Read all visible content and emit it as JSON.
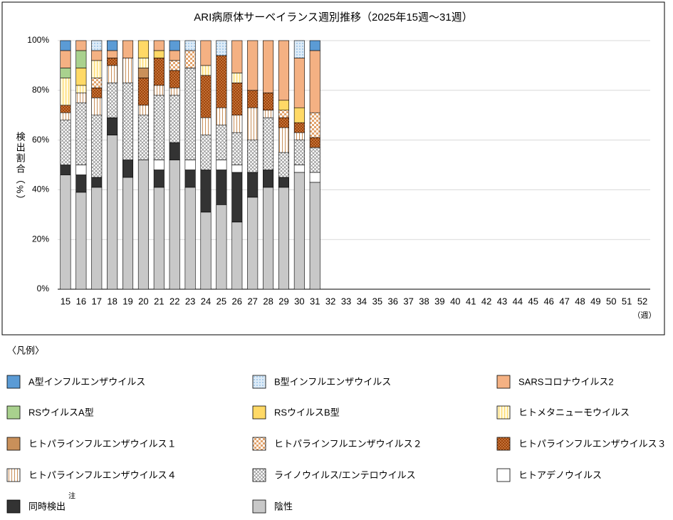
{
  "chart_data": {
    "type": "bar",
    "stacked": true,
    "title": "ARI病原体サーベイランス週別推移（2025年15週～31週）",
    "y_label": "検出割合（%）",
    "x_label": "（週）",
    "legend_title": "〈凡例〉",
    "annotations": [
      "注"
    ],
    "grid": true,
    "ylim": [
      0,
      100
    ],
    "yticks": [
      {
        "value": 0,
        "label": "0%"
      },
      {
        "value": 20,
        "label": "20%"
      },
      {
        "value": 40,
        "label": "40%"
      },
      {
        "value": 60,
        "label": "60%"
      },
      {
        "value": 80,
        "label": "80%"
      },
      {
        "value": 100,
        "label": "100%"
      }
    ],
    "categories": [
      "15",
      "16",
      "17",
      "18",
      "19",
      "20",
      "21",
      "22",
      "23",
      "24",
      "25",
      "26",
      "27",
      "28",
      "29",
      "30",
      "31",
      "32",
      "33",
      "34",
      "35",
      "36",
      "37",
      "38",
      "39",
      "40",
      "41",
      "42",
      "43",
      "44",
      "45",
      "46",
      "47",
      "48",
      "49",
      "50",
      "51",
      "52"
    ],
    "series": [
      {
        "name": "A型インフルエンザウイルス",
        "color": "#5b9bd5",
        "values": [
          4,
          0,
          0,
          4,
          0,
          0,
          0,
          4,
          0,
          0,
          0,
          0,
          0,
          0,
          0,
          0,
          4,
          null,
          null,
          null,
          null,
          null,
          null,
          null,
          null,
          null,
          null,
          null,
          null,
          null,
          null,
          null,
          null,
          null,
          null,
          null,
          null,
          null
        ]
      },
      {
        "name": "B型インフルエンザウイルス",
        "color": "#ddebf7",
        "values": [
          0,
          0,
          4,
          0,
          0,
          0,
          0,
          0,
          4,
          0,
          6,
          0,
          0,
          0,
          0,
          7,
          0,
          null,
          null,
          null,
          null,
          null,
          null,
          null,
          null,
          null,
          null,
          null,
          null,
          null,
          null,
          null,
          null,
          null,
          null,
          null,
          null,
          null
        ]
      },
      {
        "name": "SARSコロナウイルス2",
        "color": "#f4b183",
        "values": [
          7,
          4,
          4,
          3,
          7,
          0,
          4,
          4,
          0,
          10,
          0,
          13,
          20,
          21,
          24,
          20,
          25,
          null,
          null,
          null,
          null,
          null,
          null,
          null,
          null,
          null,
          null,
          null,
          null,
          null,
          null,
          null,
          null,
          null,
          null,
          null,
          null,
          null
        ]
      },
      {
        "name": "RSウイルスA型",
        "color": "#a9d18e",
        "values": [
          4,
          7,
          0,
          0,
          0,
          0,
          0,
          0,
          0,
          0,
          0,
          0,
          0,
          0,
          0,
          0,
          0,
          null,
          null,
          null,
          null,
          null,
          null,
          null,
          null,
          null,
          null,
          null,
          null,
          null,
          null,
          null,
          null,
          null,
          null,
          null,
          null,
          null
        ]
      },
      {
        "name": "RSウイルスB型",
        "color": "#ffd966",
        "values": [
          0,
          7,
          0,
          0,
          0,
          7,
          3,
          0,
          0,
          0,
          0,
          0,
          0,
          0,
          4,
          6,
          0,
          null,
          null,
          null,
          null,
          null,
          null,
          null,
          null,
          null,
          null,
          null,
          null,
          null,
          null,
          null,
          null,
          null,
          null,
          null,
          null,
          null
        ]
      },
      {
        "name": "ヒトメタニューモウイルス",
        "color": "#fff2cc",
        "values": [
          11,
          3,
          7,
          0,
          0,
          4,
          0,
          0,
          0,
          4,
          0,
          4,
          0,
          0,
          0,
          0,
          0,
          null,
          null,
          null,
          null,
          null,
          null,
          null,
          null,
          null,
          null,
          null,
          null,
          null,
          null,
          null,
          null,
          null,
          null,
          null,
          null,
          null
        ]
      },
      {
        "name": "ヒトパラインフルエンザウイルス１",
        "color": "#c9905a",
        "values": [
          0,
          0,
          0,
          0,
          0,
          4,
          0,
          0,
          0,
          0,
          0,
          0,
          0,
          0,
          0,
          0,
          0,
          null,
          null,
          null,
          null,
          null,
          null,
          null,
          null,
          null,
          null,
          null,
          null,
          null,
          null,
          null,
          null,
          null,
          null,
          null,
          null,
          null
        ]
      },
      {
        "name": "ヒトパラインフルエンザウイルス２",
        "color": "#f4b183",
        "values": [
          0,
          0,
          4,
          0,
          0,
          0,
          0,
          4,
          7,
          0,
          0,
          0,
          0,
          0,
          3,
          0,
          10,
          null,
          null,
          null,
          null,
          null,
          null,
          null,
          null,
          null,
          null,
          null,
          null,
          null,
          null,
          null,
          null,
          null,
          null,
          null,
          null,
          null
        ]
      },
      {
        "name": "ヒトパラインフルエンザウイルス３",
        "color": "#a0460a",
        "values": [
          3,
          0,
          4,
          3,
          0,
          11,
          11,
          7,
          0,
          17,
          21,
          13,
          7,
          7,
          4,
          4,
          4,
          null,
          null,
          null,
          null,
          null,
          null,
          null,
          null,
          null,
          null,
          null,
          null,
          null,
          null,
          null,
          null,
          null,
          null,
          null,
          null,
          null
        ]
      },
      {
        "name": "ヒトパラインフルエンザウイルス４",
        "color": "#c9905a",
        "values": [
          3,
          4,
          7,
          7,
          10,
          4,
          4,
          3,
          0,
          7,
          7,
          7,
          13,
          3,
          10,
          3,
          0,
          null,
          null,
          null,
          null,
          null,
          null,
          null,
          null,
          null,
          null,
          null,
          null,
          null,
          null,
          null,
          null,
          null,
          null,
          null,
          null,
          null
        ]
      },
      {
        "name": "ライノウイルス/エンテロウイルス",
        "color": "#a6a6a6",
        "values": [
          18,
          25,
          25,
          14,
          31,
          18,
          26,
          19,
          37,
          14,
          14,
          13,
          13,
          21,
          10,
          10,
          10,
          null,
          null,
          null,
          null,
          null,
          null,
          null,
          null,
          null,
          null,
          null,
          null,
          null,
          null,
          null,
          null,
          null,
          null,
          null,
          null,
          null
        ]
      },
      {
        "name": "ヒトアデノウイルス",
        "color": "#ffffff",
        "values": [
          0,
          4,
          0,
          0,
          0,
          0,
          4,
          0,
          4,
          0,
          4,
          3,
          0,
          0,
          0,
          3,
          4,
          null,
          null,
          null,
          null,
          null,
          null,
          null,
          null,
          null,
          null,
          null,
          null,
          null,
          null,
          null,
          null,
          null,
          null,
          null,
          null,
          null
        ]
      },
      {
        "name": "同時検出",
        "color": "#333333",
        "values": [
          4,
          7,
          4,
          7,
          7,
          0,
          7,
          7,
          7,
          17,
          14,
          20,
          10,
          7,
          4,
          0,
          0,
          null,
          null,
          null,
          null,
          null,
          null,
          null,
          null,
          null,
          null,
          null,
          null,
          null,
          null,
          null,
          null,
          null,
          null,
          null,
          null,
          null
        ]
      },
      {
        "name": "陰性",
        "color": "#c8c8c8",
        "values": [
          46,
          39,
          41,
          62,
          45,
          52,
          41,
          52,
          41,
          31,
          34,
          27,
          37,
          41,
          41,
          47,
          43,
          null,
          null,
          null,
          null,
          null,
          null,
          null,
          null,
          null,
          null,
          null,
          null,
          null,
          null,
          null,
          null,
          null,
          null,
          null,
          null,
          null
        ]
      }
    ]
  }
}
